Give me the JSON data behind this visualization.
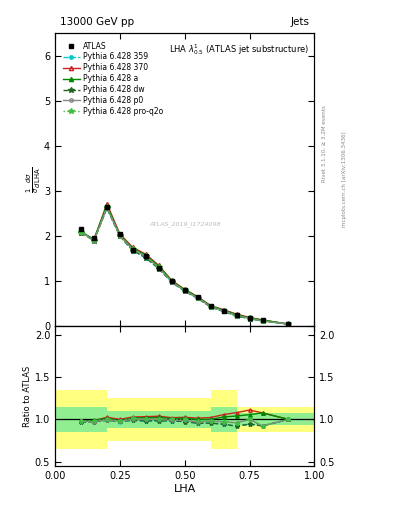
{
  "title_top": "13000 GeV pp",
  "title_right": "Jets",
  "plot_title": "LHA $\\lambda^{1}_{0.5}$ (ATLAS jet substructure)",
  "xlabel": "LHA",
  "ylabel_main": "$\\frac{1}{\\sigma}\\frac{d\\sigma}{d\\,\\mathrm{LHA}}$",
  "ylabel_ratio": "Ratio to ATLAS",
  "right_label1": "Rivet 3.1.10, ≥ 3.2M events",
  "right_label2": "mcplots.cern.ch [arXiv:1306.3436]",
  "watermark": "ATLAS_2019_I1724098",
  "x_values": [
    0.1,
    0.15,
    0.2,
    0.25,
    0.3,
    0.35,
    0.4,
    0.45,
    0.5,
    0.55,
    0.6,
    0.65,
    0.7,
    0.75,
    0.8,
    0.9
  ],
  "atlas_y": [
    2.15,
    1.95,
    2.65,
    2.05,
    1.7,
    1.55,
    1.3,
    1.0,
    0.8,
    0.65,
    0.45,
    0.35,
    0.25,
    0.18,
    0.13,
    0.05
  ],
  "py359_y": [
    2.1,
    1.9,
    2.62,
    2.0,
    1.68,
    1.52,
    1.28,
    0.98,
    0.78,
    0.62,
    0.43,
    0.33,
    0.23,
    0.17,
    0.12,
    0.05
  ],
  "py370_y": [
    2.1,
    1.92,
    2.72,
    2.05,
    1.75,
    1.6,
    1.35,
    1.02,
    0.82,
    0.66,
    0.46,
    0.37,
    0.27,
    0.2,
    0.14,
    0.05
  ],
  "pya_y": [
    2.1,
    1.93,
    2.68,
    2.02,
    1.73,
    1.58,
    1.33,
    1.01,
    0.81,
    0.65,
    0.45,
    0.36,
    0.26,
    0.19,
    0.14,
    0.05
  ],
  "pydw_y": [
    2.08,
    1.9,
    2.62,
    2.0,
    1.68,
    1.52,
    1.28,
    0.98,
    0.78,
    0.62,
    0.43,
    0.33,
    0.23,
    0.17,
    0.12,
    0.05
  ],
  "pyp0_y": [
    2.1,
    1.9,
    2.63,
    2.01,
    1.7,
    1.55,
    1.3,
    0.99,
    0.79,
    0.63,
    0.44,
    0.34,
    0.24,
    0.18,
    0.12,
    0.05
  ],
  "pyproq2o_y": [
    2.1,
    1.92,
    2.65,
    2.02,
    1.72,
    1.56,
    1.31,
    1.0,
    0.8,
    0.64,
    0.44,
    0.34,
    0.24,
    0.18,
    0.12,
    0.05
  ],
  "ratio_359": [
    0.98,
    0.97,
    0.99,
    0.975,
    0.99,
    0.98,
    0.985,
    0.98,
    0.975,
    0.955,
    0.955,
    0.943,
    0.92,
    0.944,
    0.923,
    1.0
  ],
  "ratio_370": [
    0.977,
    0.985,
    1.026,
    1.0,
    1.029,
    1.032,
    1.038,
    1.02,
    1.025,
    1.015,
    1.022,
    1.057,
    1.08,
    1.111,
    1.077,
    1.0
  ],
  "ratio_a": [
    0.977,
    0.99,
    1.011,
    0.985,
    1.018,
    1.019,
    1.023,
    1.01,
    1.013,
    1.0,
    1.0,
    1.029,
    1.04,
    1.056,
    1.077,
    1.0
  ],
  "ratio_dw": [
    0.967,
    0.974,
    0.989,
    0.976,
    0.988,
    0.981,
    0.985,
    0.98,
    0.975,
    0.954,
    0.956,
    0.943,
    0.92,
    0.944,
    0.923,
    1.0
  ],
  "ratio_p0": [
    0.977,
    0.974,
    0.994,
    0.98,
    1.0,
    1.0,
    1.0,
    0.99,
    0.988,
    0.969,
    0.978,
    0.971,
    0.96,
    1.0,
    0.923,
    1.0
  ],
  "ratio_proq2o": [
    0.977,
    0.985,
    1.0,
    0.985,
    1.012,
    1.006,
    1.008,
    1.0,
    1.0,
    0.985,
    0.978,
    0.971,
    0.96,
    1.0,
    0.923,
    1.0
  ],
  "yellow_band_x": [
    0.0,
    0.1,
    0.2,
    0.3,
    0.6,
    0.7,
    1.0
  ],
  "yellow_band_lo": [
    0.65,
    0.65,
    0.75,
    0.75,
    0.65,
    0.85,
    0.85
  ],
  "yellow_band_hi": [
    1.35,
    1.35,
    1.25,
    1.25,
    1.35,
    1.15,
    1.15
  ],
  "green_band_x": [
    0.0,
    0.1,
    0.2,
    0.3,
    0.6,
    0.7,
    1.0
  ],
  "green_band_lo": [
    0.85,
    0.85,
    0.9,
    0.9,
    0.85,
    0.93,
    0.93
  ],
  "green_band_hi": [
    1.15,
    1.15,
    1.1,
    1.1,
    1.15,
    1.07,
    1.07
  ],
  "color_359": "#00CCCC",
  "color_370": "#CC2222",
  "color_a": "#008800",
  "color_dw": "#226622",
  "color_p0": "#888888",
  "color_proq2o": "#44BB44",
  "xlim": [
    0.0,
    1.0
  ],
  "ylim_main": [
    0.0,
    6.5
  ],
  "ylim_ratio": [
    0.45,
    2.1
  ],
  "main_yticks": [
    0,
    1,
    2,
    3,
    4,
    5,
    6
  ],
  "ratio_yticks": [
    0.5,
    1.0,
    1.5,
    2.0
  ],
  "xticks": [
    0.0,
    0.25,
    0.5,
    0.75,
    1.0
  ]
}
